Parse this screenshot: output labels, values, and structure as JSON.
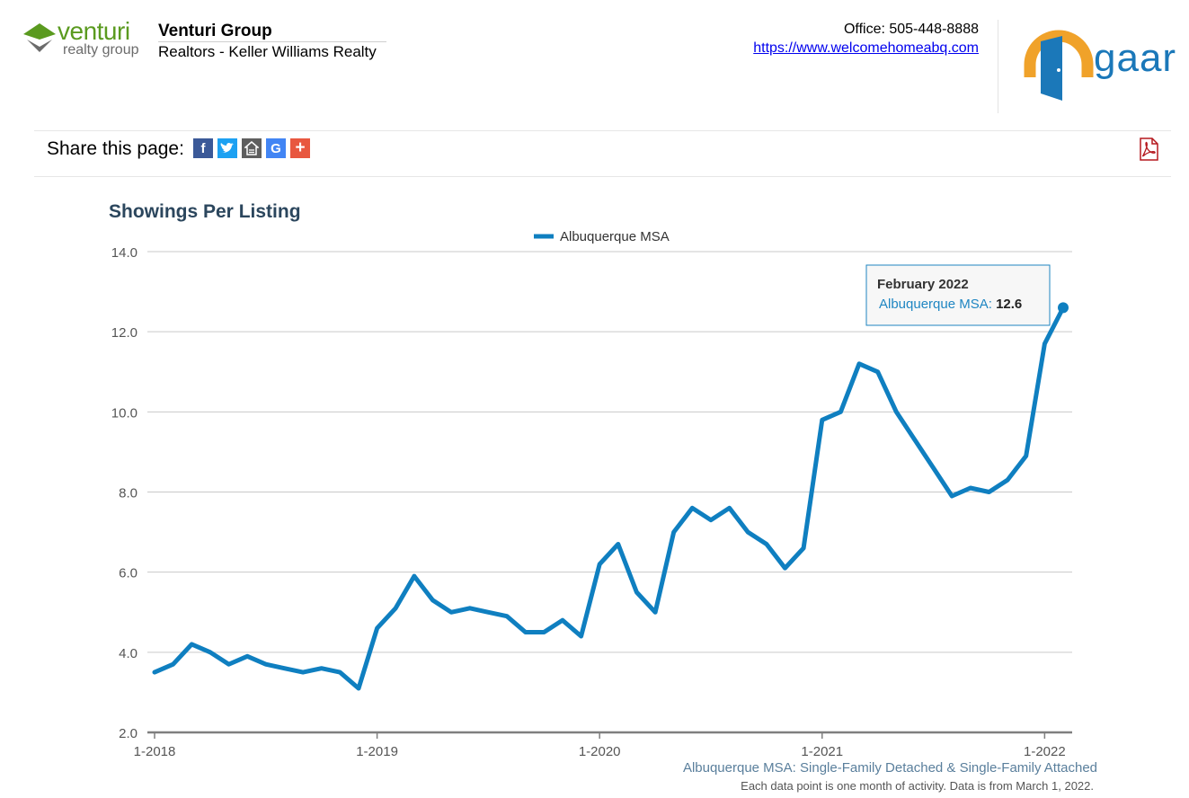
{
  "header": {
    "logo_main": "venturi",
    "logo_sub": "realty group",
    "agent_name": "Venturi Group",
    "agent_company": "Realtors - Keller Williams Realty",
    "office": "Office: 505-448-8888",
    "website": "https://www.welcomehomeabq.com",
    "brand_logo": "gaar"
  },
  "share": {
    "label": "Share this page:",
    "icons": [
      "facebook-icon",
      "twitter-icon",
      "homes-icon",
      "google-icon",
      "addthis-plus-icon"
    ],
    "pdf": "pdf-icon"
  },
  "chart_data": {
    "type": "line",
    "title": "Showings Per Listing",
    "xlabel": "",
    "ylabel": "",
    "ylim": [
      2,
      14
    ],
    "yticks": [
      "2.0",
      "4.0",
      "6.0",
      "8.0",
      "10.0",
      "12.0",
      "14.0"
    ],
    "xticks": [
      "1-2018",
      "1-2019",
      "1-2020",
      "1-2021",
      "1-2022"
    ],
    "grid": true,
    "legend_position": "top-center",
    "x_start": "1-2018",
    "x_end": "2-2022",
    "x": [
      "1-2018",
      "2-2018",
      "3-2018",
      "4-2018",
      "5-2018",
      "6-2018",
      "7-2018",
      "8-2018",
      "9-2018",
      "10-2018",
      "11-2018",
      "12-2018",
      "1-2019",
      "2-2019",
      "3-2019",
      "4-2019",
      "5-2019",
      "6-2019",
      "7-2019",
      "8-2019",
      "9-2019",
      "10-2019",
      "11-2019",
      "12-2019",
      "1-2020",
      "2-2020",
      "3-2020",
      "4-2020",
      "5-2020",
      "6-2020",
      "7-2020",
      "8-2020",
      "9-2020",
      "10-2020",
      "11-2020",
      "12-2020",
      "1-2021",
      "2-2021",
      "3-2021",
      "4-2021",
      "5-2021",
      "6-2021",
      "7-2021",
      "8-2021",
      "9-2021",
      "10-2021",
      "11-2021",
      "12-2021",
      "1-2022",
      "2-2022"
    ],
    "series": [
      {
        "name": "Albuquerque MSA",
        "color": "#0f7fc0",
        "values": [
          3.5,
          3.7,
          4.2,
          4.0,
          3.7,
          3.9,
          3.7,
          3.6,
          3.5,
          3.6,
          3.5,
          3.1,
          4.6,
          5.1,
          5.9,
          5.3,
          5.0,
          5.1,
          5.0,
          4.9,
          4.5,
          4.5,
          4.8,
          4.4,
          6.2,
          6.7,
          5.5,
          5.0,
          7.0,
          7.6,
          7.3,
          7.6,
          7.0,
          6.7,
          6.1,
          6.6,
          9.8,
          10.0,
          11.2,
          11.0,
          10.0,
          9.3,
          8.6,
          7.9,
          8.1,
          8.0,
          8.3,
          8.9,
          11.7,
          12.6
        ]
      }
    ],
    "tooltip": {
      "title": "February 2022",
      "series_label": "Albuquerque MSA",
      "value": "12.6"
    },
    "footnote_series": "Albuquerque MSA: Single-Family Detached & Single-Family Attached",
    "footnote_note": "Each data point is one month of activity. Data is from March 1, 2022."
  },
  "colors": {
    "line": "#0f7fc0",
    "grid": "#c9c9c9",
    "axis": "#7f7f7f",
    "title": "#2b465d"
  }
}
